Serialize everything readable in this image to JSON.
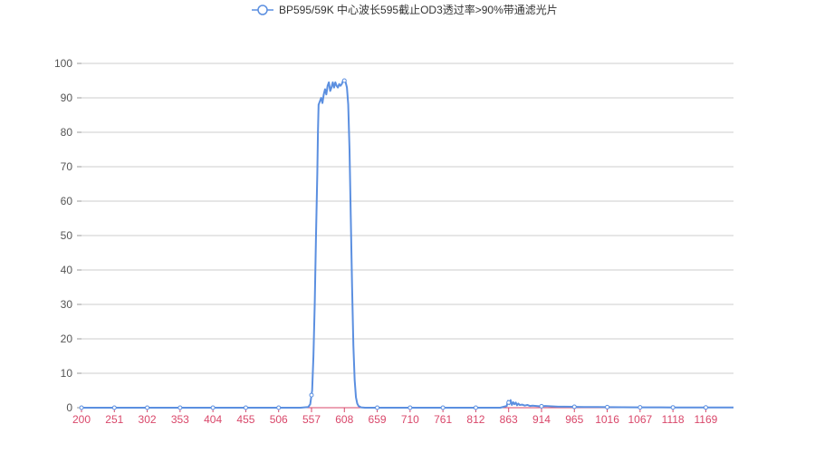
{
  "colors": {
    "series": "#5b8fe0",
    "x_tick_label": "#d9476a",
    "x_axis_line": "#d9476a",
    "grid": "#cccccc",
    "y_tick_label": "#555555"
  },
  "chart_data": {
    "type": "line",
    "title": "",
    "xlabel": "",
    "ylabel": "",
    "xlim": [
      200,
      1212
    ],
    "ylim": [
      0,
      100
    ],
    "grid": "horizontal",
    "legend": "top-center",
    "x_ticks": [
      200,
      251,
      302,
      353,
      404,
      455,
      506,
      557,
      608,
      659,
      710,
      761,
      812,
      863,
      914,
      965,
      1016,
      1067,
      1118,
      1169
    ],
    "y_ticks": [
      0,
      10,
      20,
      30,
      40,
      50,
      60,
      70,
      80,
      90,
      100
    ],
    "series": [
      {
        "name": "BP595/59K 中心波长595截止OD3透过率>90%带通滤光片",
        "x": [
          200,
          251,
          302,
          353,
          404,
          455,
          506,
          540,
          552,
          555,
          558,
          560,
          562,
          564,
          566,
          567,
          568,
          570,
          572,
          574,
          576,
          578,
          580,
          582,
          584,
          586,
          588,
          590,
          592,
          594,
          596,
          598,
          600,
          602,
          604,
          606,
          608,
          610,
          612,
          614,
          616,
          618,
          620,
          622,
          624,
          626,
          628,
          630,
          634,
          640,
          659,
          710,
          761,
          812,
          850,
          860,
          862,
          864,
          866,
          868,
          870,
          872,
          874,
          876,
          878,
          880,
          884,
          888,
          892,
          896,
          900,
          906,
          912,
          920,
          930,
          940,
          950,
          965,
          980,
          1000,
          1016,
          1040,
          1067,
          1100,
          1118,
          1150,
          1169,
          1200,
          1212
        ],
        "y": [
          0,
          0,
          0,
          0,
          0,
          0,
          0,
          0,
          0.2,
          1.0,
          5,
          15,
          30,
          50,
          68,
          80,
          88,
          89,
          90,
          88.5,
          91,
          92.5,
          91,
          93.5,
          94.5,
          92,
          93,
          94.5,
          93,
          94.5,
          93.5,
          93,
          94,
          93.5,
          94,
          95,
          95,
          94.5,
          93,
          88,
          75,
          55,
          35,
          18,
          8,
          3,
          1.2,
          0.5,
          0.1,
          0,
          0,
          0,
          0,
          0,
          0,
          0.5,
          2.0,
          1.0,
          2.2,
          0.8,
          1.6,
          1.0,
          1.5,
          0.7,
          1.2,
          0.8,
          0.9,
          0.6,
          0.8,
          0.5,
          0.6,
          0.5,
          0.4,
          0.5,
          0.4,
          0.3,
          0.3,
          0.25,
          0.2,
          0.2,
          0.15,
          0.12,
          0.1,
          0.1,
          0.08,
          0.05,
          0.05,
          0.05,
          0.05
        ]
      }
    ]
  }
}
